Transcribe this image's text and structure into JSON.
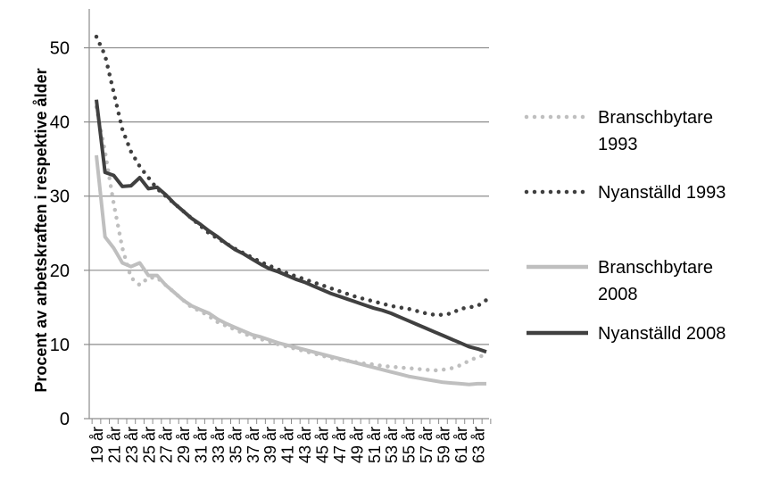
{
  "chart_data": {
    "type": "line",
    "title": "",
    "xlabel": "",
    "ylabel": "Procent av arbetskraften i respektive ålder",
    "ylim": [
      0,
      55
    ],
    "yticks": [
      0,
      10,
      20,
      30,
      40,
      50
    ],
    "grid": true,
    "legend_position": "right",
    "x_ages": [
      19,
      20,
      21,
      22,
      23,
      24,
      25,
      26,
      27,
      28,
      29,
      30,
      31,
      32,
      33,
      34,
      35,
      36,
      37,
      38,
      39,
      40,
      41,
      42,
      43,
      44,
      45,
      46,
      47,
      48,
      49,
      50,
      51,
      52,
      53,
      54,
      55,
      56,
      57,
      58,
      59,
      60,
      61,
      62,
      63,
      64
    ],
    "x_tick_labels": [
      "19 år",
      "21 år",
      "23 år",
      "25 år",
      "27 år",
      "29 år",
      "31 år",
      "33 år",
      "35 år",
      "37 år",
      "39 år",
      "41 år",
      "43 år",
      "45 år",
      "47 år",
      "49 år",
      "51 år",
      "53 år",
      "55 år",
      "57 år",
      "59 år",
      "61 år",
      "63 år"
    ],
    "series": [
      {
        "name": "Branschbytare 1993",
        "color": "#bfbfbf",
        "style": "dotted",
        "values": [
          42,
          36,
          29,
          23,
          19,
          18,
          19,
          19,
          18,
          17,
          16,
          15,
          14.5,
          13.8,
          13,
          12.5,
          12,
          11.5,
          11,
          10.7,
          10.4,
          10,
          9.7,
          9.4,
          9.1,
          8.8,
          8.5,
          8.2,
          8,
          7.8,
          7.6,
          7.4,
          7.3,
          7.1,
          7,
          6.9,
          6.8,
          6.7,
          6.6,
          6.5,
          6.6,
          6.8,
          7.2,
          7.8,
          8.3,
          8.6
        ]
      },
      {
        "name": "Nyanställd 1993",
        "color": "#3f3f3f",
        "style": "dotted",
        "values": [
          51.5,
          49,
          44,
          39,
          36,
          34,
          32.5,
          31,
          30,
          29,
          28,
          27,
          26,
          25,
          24.3,
          23.6,
          22.9,
          22.3,
          21.7,
          21.1,
          20.6,
          20.1,
          19.6,
          19.2,
          18.8,
          18.4,
          18,
          17.6,
          17.2,
          16.8,
          16.4,
          16.1,
          15.8,
          15.5,
          15.2,
          15,
          14.8,
          14.5,
          14.2,
          14,
          14,
          14.2,
          14.8,
          15,
          15.2,
          16
        ]
      },
      {
        "name": "Branschbytare 2008",
        "color": "#bfbfbf",
        "style": "solid",
        "values": [
          35.5,
          24.5,
          23,
          21,
          20.5,
          21,
          19.3,
          19.3,
          18,
          17,
          16,
          15.2,
          14.7,
          14.2,
          13.4,
          12.8,
          12.3,
          11.8,
          11.3,
          11,
          10.6,
          10.2,
          9.9,
          9.6,
          9.3,
          9,
          8.7,
          8.4,
          8.1,
          7.8,
          7.5,
          7.2,
          6.9,
          6.6,
          6.3,
          6,
          5.7,
          5.5,
          5.3,
          5.1,
          4.9,
          4.8,
          4.7,
          4.6,
          4.7,
          4.7
        ]
      },
      {
        "name": "Nyanställd 2008",
        "color": "#404040",
        "style": "solid",
        "values": [
          43,
          33.2,
          32.8,
          31.3,
          31.4,
          32.5,
          31,
          31.2,
          30.2,
          29,
          28,
          27,
          26.2,
          25.3,
          24.5,
          23.6,
          22.8,
          22.2,
          21.5,
          20.8,
          20.2,
          19.8,
          19.3,
          18.8,
          18.4,
          17.9,
          17.4,
          16.9,
          16.5,
          16.1,
          15.7,
          15.3,
          14.9,
          14.6,
          14.2,
          13.7,
          13.2,
          12.7,
          12.2,
          11.7,
          11.2,
          10.7,
          10.2,
          9.7,
          9.4,
          9
        ]
      }
    ]
  }
}
